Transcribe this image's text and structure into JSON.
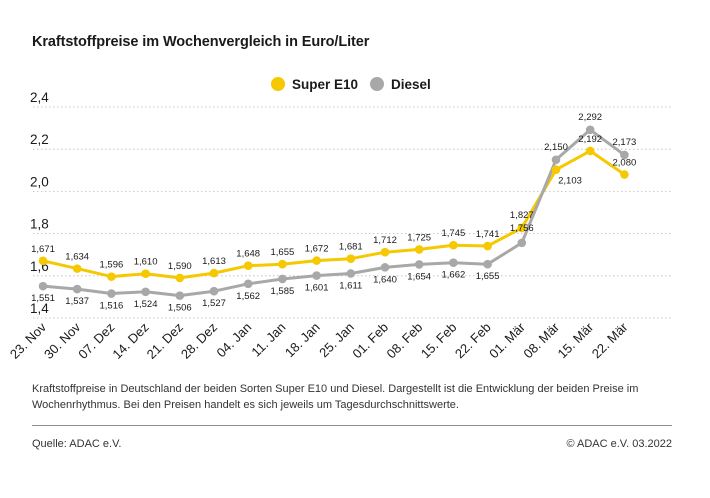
{
  "title": "Kraftstoffpreise im Wochenvergleich in Euro/Liter",
  "footnote": "Kraftstoffpreise in Deutschland der beiden Sorten Super E10 und Diesel. Dargestellt ist die Entwicklung der beiden Preise im Wochenrhythmus. Bei den Preisen handelt es sich jeweils um Tagesdurchschnittswerte.",
  "source": "Quelle: ADAC e.V.",
  "copyright": "© ADAC e.V. 03.2022",
  "chart_data": {
    "type": "line",
    "title": "Kraftstoffpreise im Wochenvergleich in Euro/Liter",
    "categories": [
      "23. Nov",
      "30. Nov",
      "07. Dez",
      "14. Dez",
      "21. Dez",
      "28. Dez",
      "04. Jan",
      "11. Jan",
      "18. Jan",
      "25. Jan",
      "01. Feb",
      "08. Feb",
      "15. Feb",
      "22. Feb",
      "01. Mär",
      "08. Mär",
      "15. Mär",
      "22. Mär"
    ],
    "yticks": [
      "2,4",
      "2,2",
      "2,0",
      "1,8",
      "1,6",
      "1,4"
    ],
    "ylim": [
      1.4,
      2.4
    ],
    "grid": true,
    "legend": "top-center",
    "series": [
      {
        "name": "Super E10",
        "color": "#f5c800",
        "values": [
          1.671,
          1.634,
          1.596,
          1.61,
          1.59,
          1.613,
          1.648,
          1.655,
          1.672,
          1.681,
          1.712,
          1.725,
          1.745,
          1.741,
          1.827,
          2.103,
          2.192,
          2.08
        ],
        "labels": [
          "1,671",
          "1,634",
          "1,596",
          "1,610",
          "1,590",
          "1,613",
          "1,648",
          "1,655",
          "1,672",
          "1,681",
          "1,712",
          "1,725",
          "1,745",
          "1,741",
          "1,827",
          "2,103",
          "2,192",
          "2,080"
        ]
      },
      {
        "name": "Diesel",
        "color": "#a8a8a8",
        "values": [
          1.551,
          1.537,
          1.516,
          1.524,
          1.506,
          1.527,
          1.562,
          1.585,
          1.601,
          1.611,
          1.64,
          1.654,
          1.662,
          1.655,
          1.756,
          2.15,
          2.292,
          2.173
        ],
        "labels": [
          "1,551",
          "1,537",
          "1,516",
          "1,524",
          "1,506",
          "1,527",
          "1,562",
          "1,585",
          "1,601",
          "1,611",
          "1,640",
          "1,654",
          "1,662",
          "1,655",
          "1,756",
          "2,150",
          "2,292",
          "2,173"
        ]
      }
    ]
  }
}
